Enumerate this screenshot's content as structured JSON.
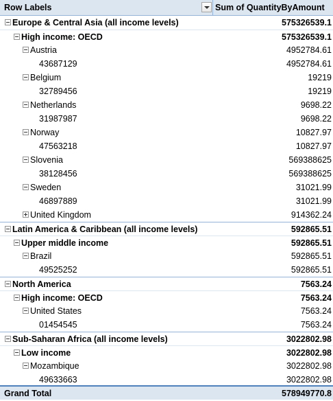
{
  "header": {
    "row_labels": "Row Labels",
    "value_field": "Sum of QuantityByAmount"
  },
  "regions": [
    {
      "label": "Europe & Central Asia (all income levels)",
      "value": "575326539.1",
      "income": {
        "label": "High income: OECD",
        "value": "575326539.1",
        "countries": [
          {
            "label": "Austria",
            "value": "4952784.61",
            "id": "43687129",
            "id_value": "4952784.61"
          },
          {
            "label": "Belgium",
            "value": "19219",
            "id": "32789456",
            "id_value": "19219"
          },
          {
            "label": "Netherlands",
            "value": "9698.22",
            "id": "31987987",
            "id_value": "9698.22"
          },
          {
            "label": "Norway",
            "value": "10827.97",
            "id": "47563218",
            "id_value": "10827.97"
          },
          {
            "label": "Slovenia",
            "value": "569388625",
            "id": "38128456",
            "id_value": "569388625"
          },
          {
            "label": "Sweden",
            "value": "31021.99",
            "id": "46897889",
            "id_value": "31021.99"
          },
          {
            "label": "United Kingdom",
            "value": "914362.24"
          }
        ]
      }
    },
    {
      "label": "Latin America & Caribbean (all income levels)",
      "value": "592865.51",
      "income": {
        "label": "Upper middle income",
        "value": "592865.51",
        "countries": [
          {
            "label": "Brazil",
            "value": "592865.51",
            "id": "49525252",
            "id_value": "592865.51"
          }
        ]
      }
    },
    {
      "label": "North America",
      "value": "7563.24",
      "income": {
        "label": "High income: OECD",
        "value": "7563.24",
        "countries": [
          {
            "label": "United States",
            "value": "7563.24",
            "id": "01454545",
            "id_value": "7563.24"
          }
        ]
      }
    },
    {
      "label": "Sub-Saharan Africa (all income levels)",
      "value": "3022802.98",
      "income": {
        "label": "Low income",
        "value": "3022802.98",
        "countries": [
          {
            "label": "Mozambique",
            "value": "3022802.98",
            "id": "49633663",
            "id_value": "3022802.98"
          }
        ]
      }
    }
  ],
  "grand_total": {
    "label": "Grand Total",
    "value": "578949770.8"
  }
}
